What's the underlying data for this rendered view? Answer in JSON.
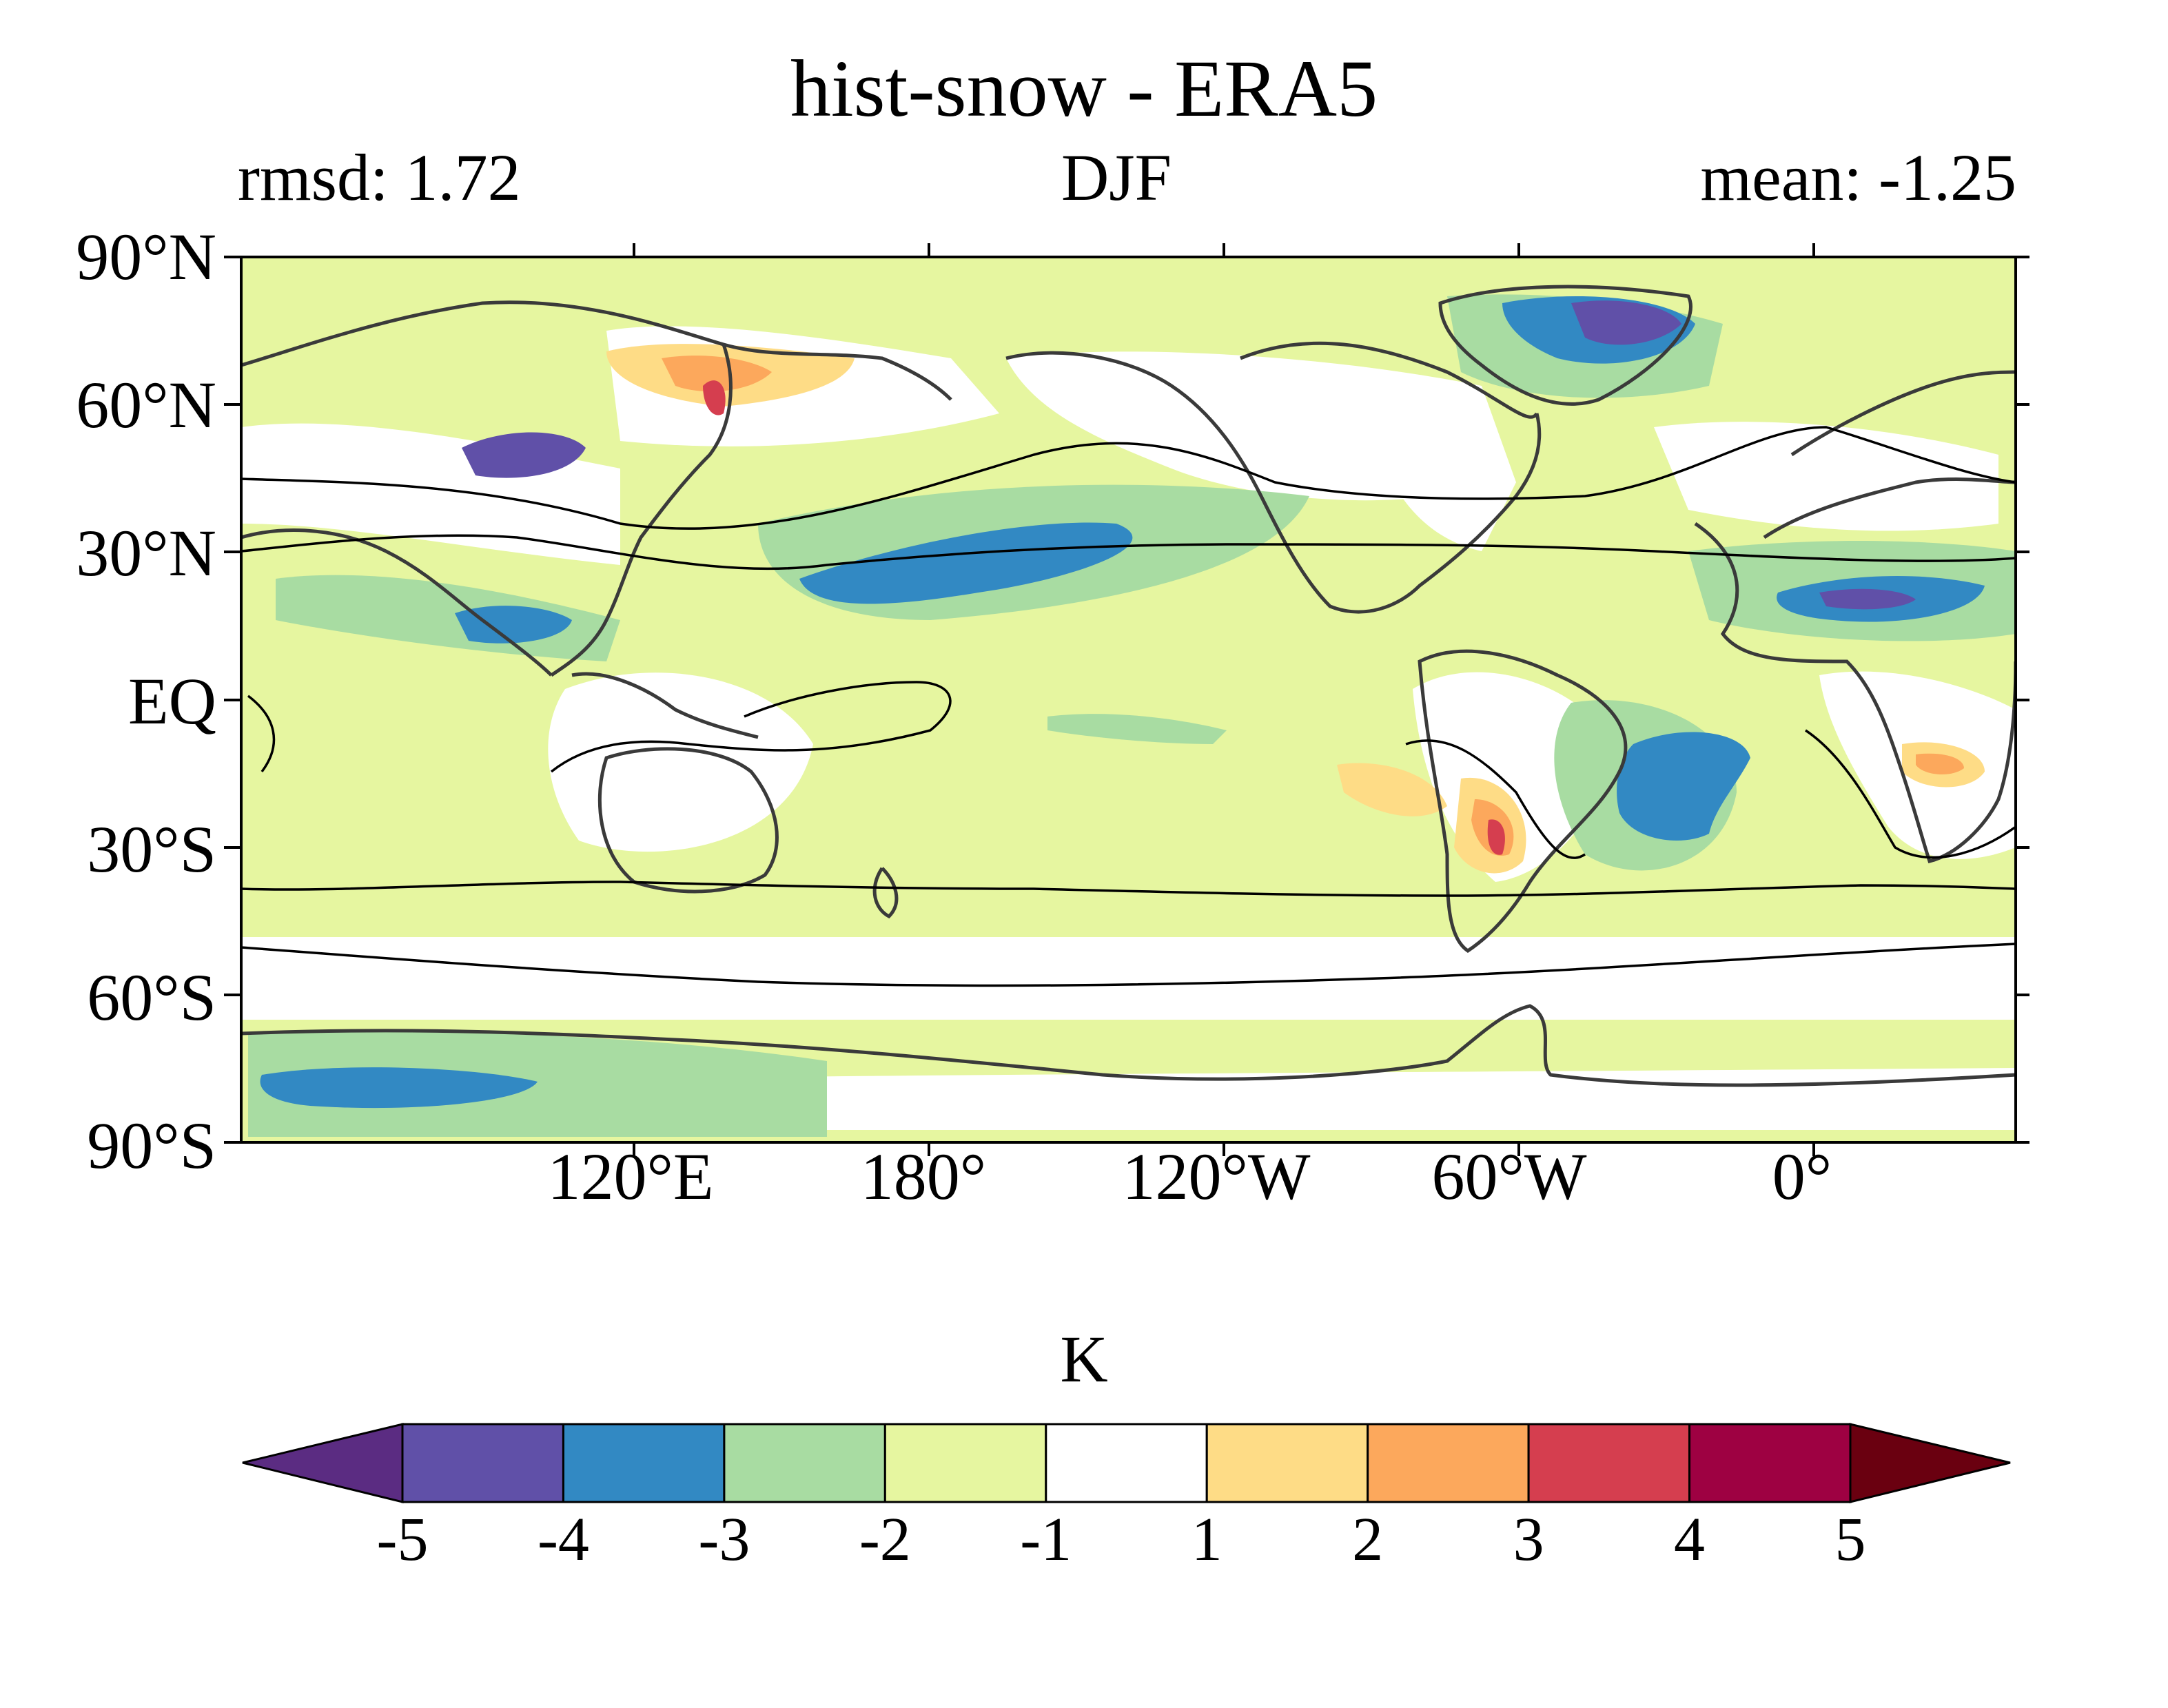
{
  "title": "hist-snow - ERA5",
  "left_label": "rmsd: 1.72",
  "center_label": "DJF",
  "right_label": "mean: -1.25",
  "lat_ticks": [
    "90°N",
    "60°N",
    "30°N",
    "EQ",
    "30°S",
    "60°S",
    "90°S"
  ],
  "lon_ticks": [
    "120°E",
    "180°",
    "120°W",
    "60°W",
    "0°"
  ],
  "colorbar": {
    "units": "K",
    "labels": [
      "-5",
      "-4",
      "-3",
      "-2",
      "-1",
      "1",
      "2",
      "3",
      "4",
      "5"
    ],
    "under_color": "#5b2c82",
    "colors": [
      "#6050a8",
      "#3289c3",
      "#a8dca2",
      "#e6f6a0",
      "#ffffff",
      "#fedc86",
      "#fca85c",
      "#d53e4f",
      "#9e0142"
    ],
    "over_color": "#6a0010"
  },
  "map": {
    "projection": "equirectangular, centered 150°W",
    "variable_difference": "hist-snow minus ERA5",
    "season": "DJF"
  }
}
